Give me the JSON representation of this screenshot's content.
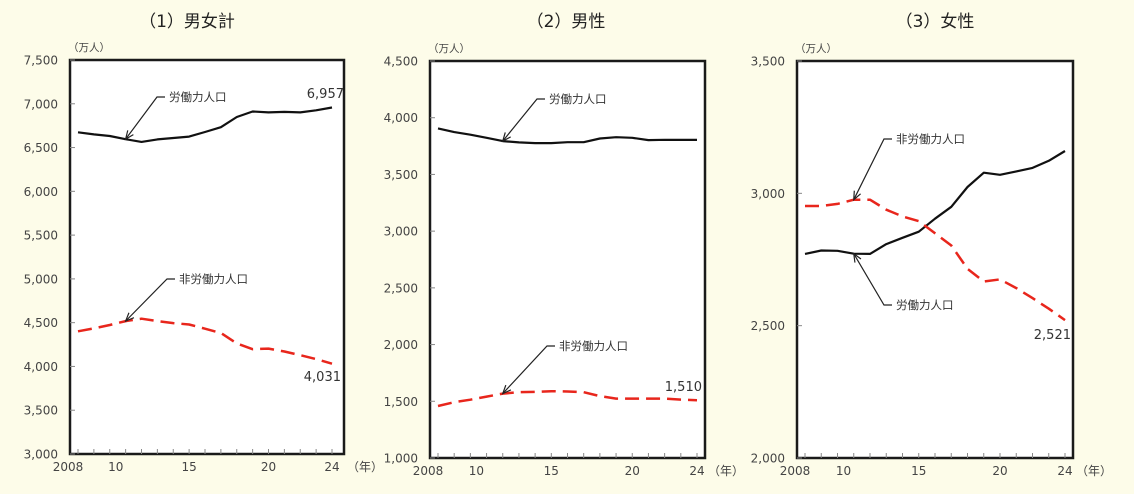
{
  "chart_data": [
    {
      "type": "line",
      "title": "（1）男女計",
      "ylabel": "（万人）",
      "xlabel": "（年）",
      "ylim": [
        3000,
        7500
      ],
      "yticks": [
        "3,000",
        "3,500",
        "4,000",
        "4,500",
        "5,000",
        "5,500",
        "6,000",
        "6,500",
        "7,000",
        "7,500"
      ],
      "xtick_labels": [
        "2008",
        "10",
        "15",
        "20",
        "24"
      ],
      "x": [
        2008,
        2009,
        2010,
        2011,
        2012,
        2013,
        2014,
        2015,
        2016,
        2017,
        2018,
        2019,
        2020,
        2021,
        2022,
        2023,
        2024
      ],
      "series": [
        {
          "name": "労働力人口",
          "style": "solid",
          "color": "#111111",
          "values": [
            6674,
            6650,
            6632,
            6596,
            6565,
            6593,
            6609,
            6625,
            6678,
            6732,
            6849,
            6912,
            6902,
            6907,
            6902,
            6925,
            6957
          ],
          "callout": "労働力人口",
          "end_label": "6,957"
        },
        {
          "name": "非労働力人口",
          "style": "dashed",
          "color": "#e8261c",
          "values": [
            4401,
            4435,
            4473,
            4518,
            4545,
            4518,
            4495,
            4479,
            4431,
            4382,
            4263,
            4197,
            4204,
            4171,
            4128,
            4084,
            4031
          ],
          "callout": "非労働力人口",
          "end_label": "4,031"
        }
      ]
    },
    {
      "type": "line",
      "title": "（2）男性",
      "ylabel": "（万人）",
      "xlabel": "（年）",
      "ylim": [
        1000,
        4500
      ],
      "yticks": [
        "1,000",
        "1,500",
        "2,000",
        "2,500",
        "3,000",
        "3,500",
        "4,000",
        "4,500"
      ],
      "xtick_labels": [
        "2008",
        "10",
        "15",
        "20",
        "24"
      ],
      "x": [
        2008,
        2009,
        2010,
        2011,
        2012,
        2013,
        2014,
        2015,
        2016,
        2017,
        2018,
        2019,
        2020,
        2021,
        2022,
        2023,
        2024
      ],
      "series": [
        {
          "name": "労働力人口",
          "style": "solid",
          "color": "#111111",
          "values": [
            3906,
            3873,
            3850,
            3823,
            3794,
            3782,
            3776,
            3776,
            3784,
            3784,
            3817,
            3828,
            3823,
            3803,
            3805,
            3804,
            3804
          ],
          "callout": "労働力人口"
        },
        {
          "name": "非労働力人口",
          "style": "dashed",
          "color": "#e8261c",
          "values": [
            1458,
            1492,
            1514,
            1541,
            1568,
            1580,
            1583,
            1589,
            1586,
            1580,
            1546,
            1524,
            1524,
            1524,
            1524,
            1515,
            1510
          ],
          "callout": "非労働力人口",
          "end_label": "1,510"
        }
      ]
    },
    {
      "type": "line",
      "title": "（3）女性",
      "ylabel": "（万人）",
      "xlabel": "（年）",
      "ylim": [
        2000,
        3500
      ],
      "yticks": [
        "2,000",
        "2,500",
        "3,000",
        "3,500"
      ],
      "xtick_labels": [
        "2008",
        "10",
        "15",
        "20",
        "24"
      ],
      "x": [
        2008,
        2009,
        2010,
        2011,
        2012,
        2013,
        2014,
        2015,
        2016,
        2017,
        2018,
        2019,
        2020,
        2021,
        2022,
        2023,
        2024
      ],
      "series": [
        {
          "name": "労働力人口",
          "style": "solid",
          "color": "#111111",
          "values": [
            2771,
            2784,
            2783,
            2772,
            2771,
            2808,
            2832,
            2855,
            2904,
            2949,
            3024,
            3078,
            3070,
            3083,
            3096,
            3123,
            3160
          ],
          "callout": "労働力人口"
        },
        {
          "name": "非労働力人口",
          "style": "dashed",
          "color": "#e8261c",
          "values": [
            2952,
            2952,
            2960,
            2976,
            2976,
            2938,
            2913,
            2895,
            2849,
            2803,
            2715,
            2667,
            2675,
            2642,
            2604,
            2564,
            2521
          ],
          "callout": "非労働力人口",
          "end_label": "2,521"
        }
      ]
    }
  ]
}
